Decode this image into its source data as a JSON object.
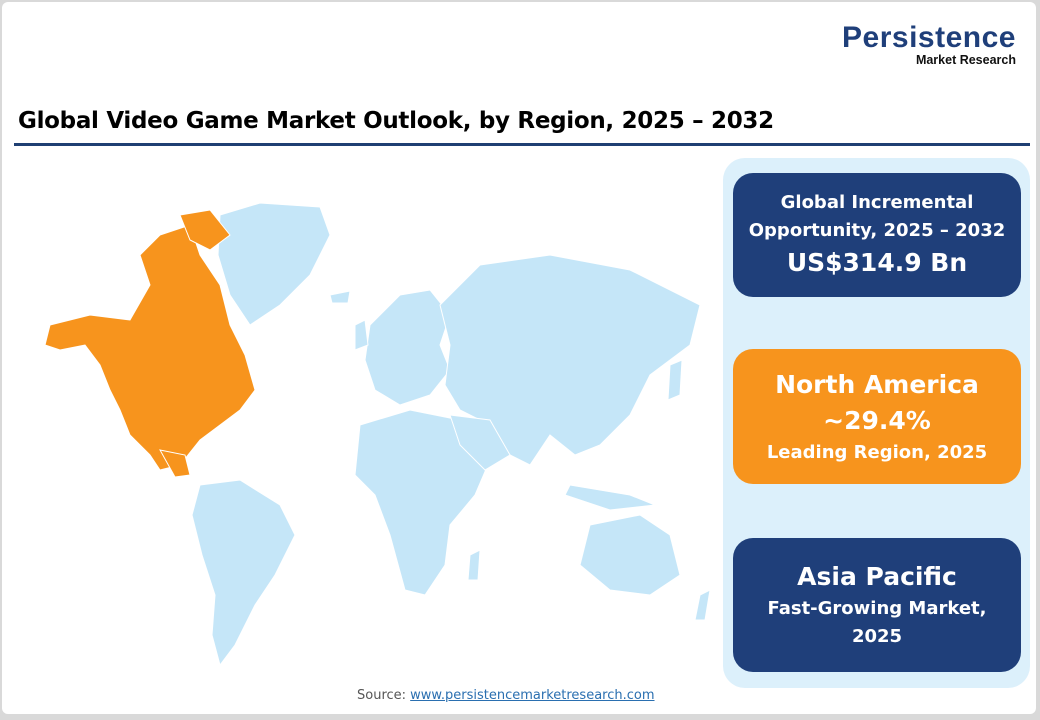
{
  "logo": {
    "main": "Persistence",
    "sub": "Market Research"
  },
  "title": "Global Video Game Market Outlook, by Region, 2025 – 2032",
  "colors": {
    "navy": "#1f3f7a",
    "orange": "#f7941d",
    "map_land": "#c5e6f8",
    "highlight": "#f7941d",
    "panel": "#dcf0fb"
  },
  "map": {
    "highlighted_region": "North America"
  },
  "cards": [
    {
      "line1": "Global Incremental",
      "line2": "Opportunity, 2025 – 2032",
      "value": "US$314.9 Bn"
    },
    {
      "region": "North America",
      "value": "~29.4%",
      "caption": "Leading Region, 2025"
    },
    {
      "region": "Asia Pacific",
      "caption1": "Fast-Growing Market,",
      "caption2": "2025"
    }
  ],
  "source": {
    "label": "Source:",
    "link": "www.persistencemarketresearch.com"
  }
}
